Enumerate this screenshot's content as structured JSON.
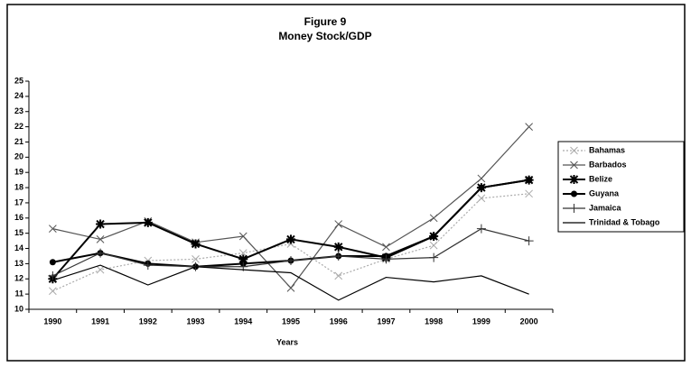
{
  "chart_data": {
    "type": "line",
    "title": "Figure 9",
    "subtitle": "Money Stock/GDP",
    "x_label": "Years",
    "categories": [
      "1990",
      "1991",
      "1992",
      "1993",
      "1994",
      "1995",
      "1996",
      "1997",
      "1998",
      "1999",
      "2000"
    ],
    "series": [
      {
        "name": "Bahamas",
        "color": "#aaaaaa",
        "marker": "x",
        "dashed": true,
        "values": [
          11.2,
          12.6,
          13.2,
          13.3,
          13.7,
          14.3,
          12.2,
          13.3,
          14.2,
          17.3,
          17.6
        ]
      },
      {
        "name": "Barbados",
        "color": "#555555",
        "marker": "x",
        "dashed": false,
        "values": [
          15.3,
          14.6,
          15.8,
          14.4,
          14.8,
          11.4,
          15.6,
          14.1,
          16.0,
          18.6,
          22.0
        ]
      },
      {
        "name": "Belize",
        "color": "#000000",
        "marker": "star",
        "dashed": false,
        "values": [
          12.0,
          15.6,
          15.7,
          14.3,
          13.3,
          14.6,
          14.1,
          13.4,
          14.8,
          18.0,
          18.5
        ]
      },
      {
        "name": "Guyana",
        "color": "#000000",
        "marker": "circle",
        "dashed": false,
        "values": [
          13.1,
          13.7,
          13.0,
          12.8,
          13.0,
          13.2,
          13.5,
          13.5,
          14.8,
          18.0,
          18.5
        ]
      },
      {
        "name": "Jamaica",
        "color": "#333333",
        "marker": "plus",
        "dashed": false,
        "values": [
          12.2,
          13.7,
          12.9,
          12.8,
          12.8,
          13.2,
          13.5,
          13.3,
          13.4,
          15.3,
          14.5
        ]
      },
      {
        "name": "Trinidad & Tobago",
        "color": "#000000",
        "marker": "none",
        "dashed": false,
        "values": [
          11.9,
          12.9,
          11.6,
          12.8,
          12.6,
          12.4,
          10.6,
          12.1,
          11.8,
          12.2,
          11.0
        ]
      }
    ],
    "ylim": [
      10,
      25
    ],
    "yticks": [
      10,
      11,
      12,
      13,
      14,
      15,
      16,
      17,
      18,
      19,
      20,
      21,
      22,
      23,
      24,
      25
    ],
    "grid": false,
    "legend": "right"
  }
}
